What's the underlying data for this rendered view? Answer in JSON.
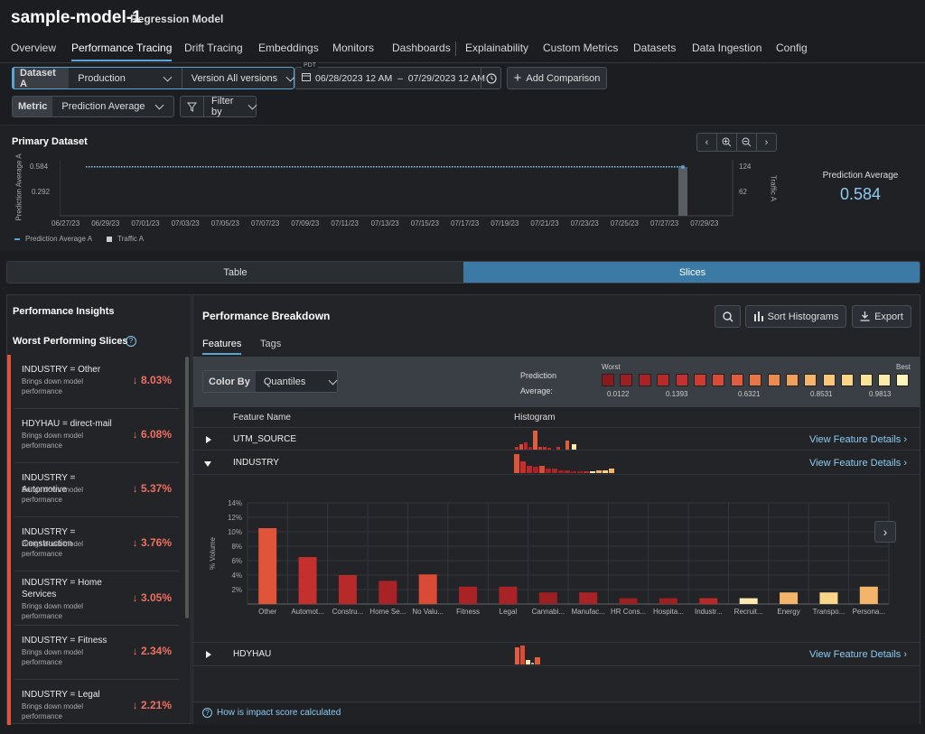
{
  "model": {
    "name": "sample-model-1",
    "type": "Regression Model"
  },
  "tabs": [
    "Overview",
    "Performance Tracing",
    "Drift Tracing",
    "Embeddings",
    "Monitors",
    "Dashboards",
    "Explainability",
    "Custom Metrics",
    "Datasets",
    "Data Ingestion",
    "Config"
  ],
  "controls": {
    "dataset_label": "Dataset A",
    "dataset_value": "Production",
    "version_value": "Version All versions",
    "tz": "PDT",
    "date_range": "06/28/2023 12 AM  –  07/29/2023 12 AM",
    "add_comparison": "Add Comparison",
    "metric_label": "Metric",
    "metric_value": "Prediction Average",
    "filter_label": "Filter by"
  },
  "primary": {
    "title": "Primary Dataset",
    "y_left_label": "Prediction Average A",
    "y_left_ticks": [
      "0.584",
      "0.292"
    ],
    "y_right_label": "Traffic A",
    "y_right_ticks": [
      "124",
      "62"
    ],
    "x_ticks": [
      "06/27/23",
      "06/29/23",
      "07/01/23",
      "07/03/23",
      "07/05/23",
      "07/07/23",
      "07/09/23",
      "07/11/23",
      "07/13/23",
      "07/15/23",
      "07/17/23",
      "07/19/23",
      "07/21/23",
      "07/23/23",
      "07/25/23",
      "07/27/23",
      "07/29/23"
    ],
    "legend_pred": "Prediction Average A",
    "legend_traffic": "Traffic A",
    "metric_name": "Prediction Average",
    "metric_value": "0.584"
  },
  "segments": {
    "table": "Table",
    "slices": "Slices"
  },
  "insights": {
    "title": "Performance Insights",
    "worst_title": "Worst Performing Slices",
    "slices": [
      {
        "name": "INDUSTRY = Other",
        "desc": "Brings down model performance",
        "pct": "↓ 8.03%"
      },
      {
        "name": "HDYHAU = direct-mail",
        "desc": "Brings down model performance",
        "pct": "↓ 6.08%"
      },
      {
        "name": "INDUSTRY = Automotive",
        "desc": "Brings down model performance",
        "pct": "↓ 5.37%"
      },
      {
        "name": "INDUSTRY = Construction",
        "desc": "Brings down model performance",
        "pct": "↓ 3.76%"
      },
      {
        "name": "INDUSTRY = Home Services",
        "desc": "Brings down model performance",
        "pct": "↓ 3.05%"
      },
      {
        "name": "INDUSTRY = Fitness",
        "desc": "Brings down model performance",
        "pct": "↓ 2.34%"
      },
      {
        "name": "INDUSTRY = Legal",
        "desc": "Brings down model performance",
        "pct": "↓ 2.21%"
      }
    ]
  },
  "breakdown": {
    "title": "Performance Breakdown",
    "sort_label": "Sort Histograms",
    "export_label": "Export",
    "tab_features": "Features",
    "tab_tags": "Tags",
    "color_by_label": "Color By",
    "color_by_value": "Quantiles",
    "legend_title": "Prediction Average:",
    "legend_worst": "Worst",
    "legend_best": "Best",
    "legend_ticks": [
      "0.0122",
      "0.1393",
      "0.6321",
      "0.8531",
      "0.9813"
    ],
    "legend_colors": [
      "#8a1a1e",
      "#9c1f22",
      "#a92326",
      "#b8292a",
      "#c4302d",
      "#cf3a31",
      "#d94b36",
      "#e05e3d",
      "#e77546",
      "#ed8a50",
      "#f1a05c",
      "#f4b46a",
      "#f7c67a",
      "#f9d58a",
      "#fbe29b",
      "#fcecac",
      "#fdf3bd"
    ],
    "col_feature": "Feature Name",
    "col_histogram": "Histogram",
    "view_details": "View Feature Details",
    "features": [
      "UTM_SOURCE",
      "INDUSTRY",
      "HDYHAU"
    ],
    "help": "How is impact score calculated"
  },
  "colors": {
    "accent": "#5aa5d6",
    "slices_active": "#3c7aa6",
    "negative": "#f07060"
  },
  "chart_data": {
    "type": "bar",
    "title": "",
    "xlabel": "",
    "ylabel": "% Volume",
    "ylim": [
      0,
      14
    ],
    "y_ticks": [
      "2%",
      "4%",
      "6%",
      "8%",
      "10%",
      "12%",
      "14%"
    ],
    "categories": [
      "Other",
      "Automot...",
      "Constru...",
      "Home Se...",
      "No Valu...",
      "Fitness",
      "Legal",
      "Cannabi...",
      "Manufac...",
      "HR Cons...",
      "Hospita...",
      "Industr...",
      "Recruit...",
      "Energy",
      "Transpo...",
      "Persona..."
    ],
    "values": [
      10.5,
      6.5,
      4.0,
      3.2,
      4.1,
      2.4,
      2.4,
      1.6,
      1.6,
      0.8,
      0.8,
      0.8,
      0.8,
      1.6,
      1.6,
      2.4
    ],
    "colors": [
      "#e0553a",
      "#c4302d",
      "#b8292a",
      "#a92326",
      "#d94b36",
      "#a92326",
      "#a92326",
      "#9c1f22",
      "#a92326",
      "#9c1f22",
      "#9c1f22",
      "#b8292a",
      "#fce9b0",
      "#f4b46a",
      "#f9d58a",
      "#f4b46a"
    ]
  }
}
